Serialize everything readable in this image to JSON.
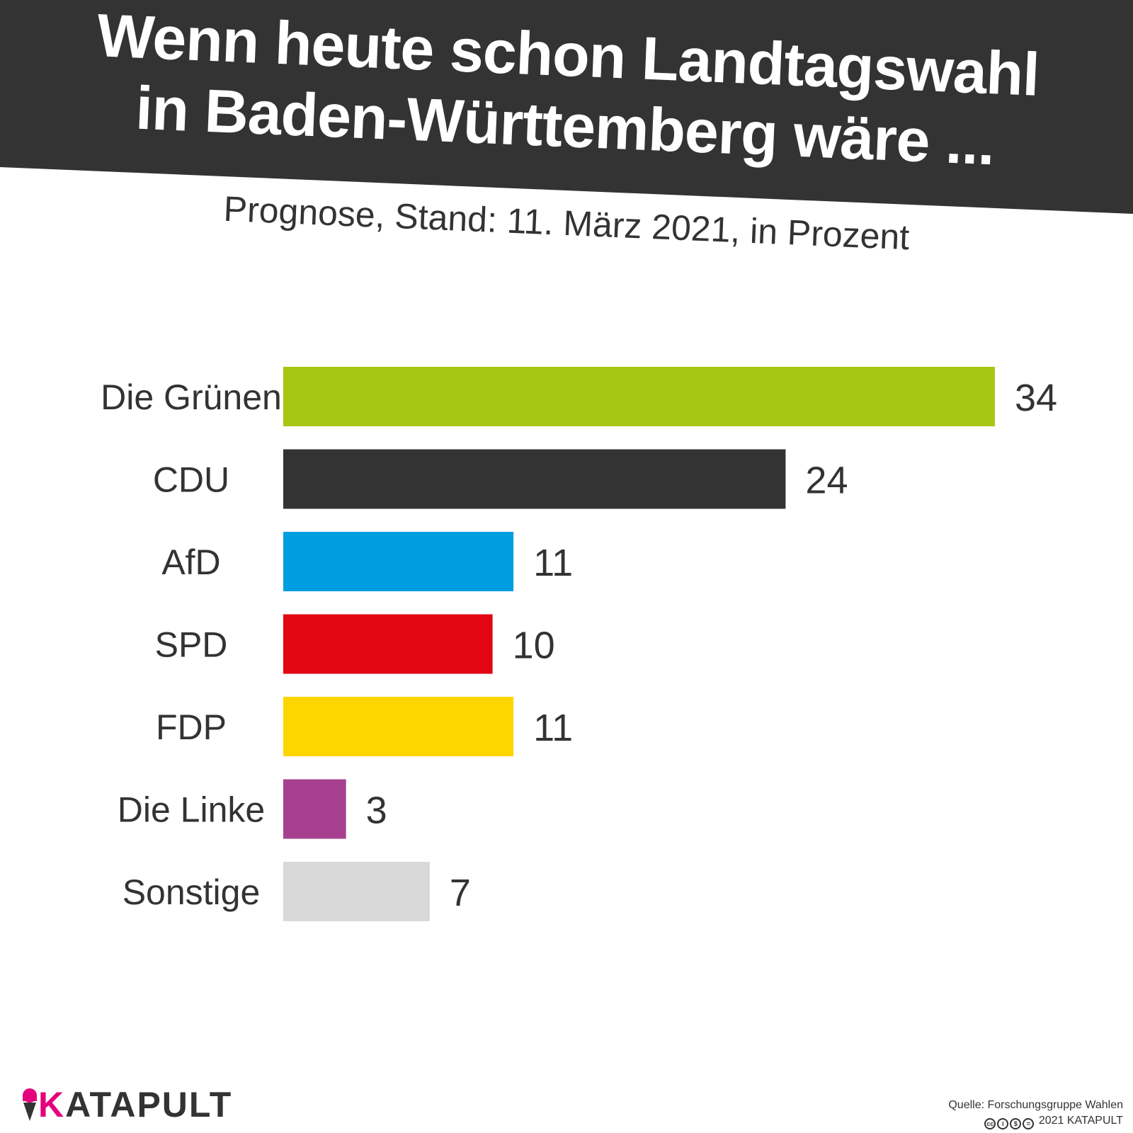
{
  "header": {
    "title_line1": "Wenn heute schon Landtagswahl",
    "title_line2": "in Baden-Württemberg wäre ...",
    "subtitle": "Prognose, Stand: 11. März 2021, in Prozent"
  },
  "colors": {
    "banner": "#333333",
    "brand_pink": "#e5007d"
  },
  "chart_data": {
    "type": "bar",
    "orientation": "horizontal",
    "title": "Wenn heute schon Landtagswahl in Baden-Württemberg wäre ...",
    "subtitle": "Prognose, Stand: 11. März 2021, in Prozent",
    "categories": [
      "Die Grünen",
      "CDU",
      "AfD",
      "SPD",
      "FDP",
      "Die Linke",
      "Sonstige"
    ],
    "values": [
      34,
      24,
      11,
      10,
      11,
      3,
      7
    ],
    "colors": [
      "#a8c614",
      "#333333",
      "#009ee0",
      "#e30613",
      "#ffd500",
      "#a7418f",
      "#d9d9d9"
    ],
    "xlim": [
      0,
      34
    ],
    "grid": false,
    "legend": "none"
  },
  "footer": {
    "logo_k": "K",
    "logo_rest": "ATAPULT",
    "source": "Quelle: Forschungsgruppe Wahlen",
    "copyright": "2021 KATAPULT",
    "license_icons": [
      "cc-icon",
      "by-icon",
      "nc-icon",
      "nd-icon"
    ]
  }
}
